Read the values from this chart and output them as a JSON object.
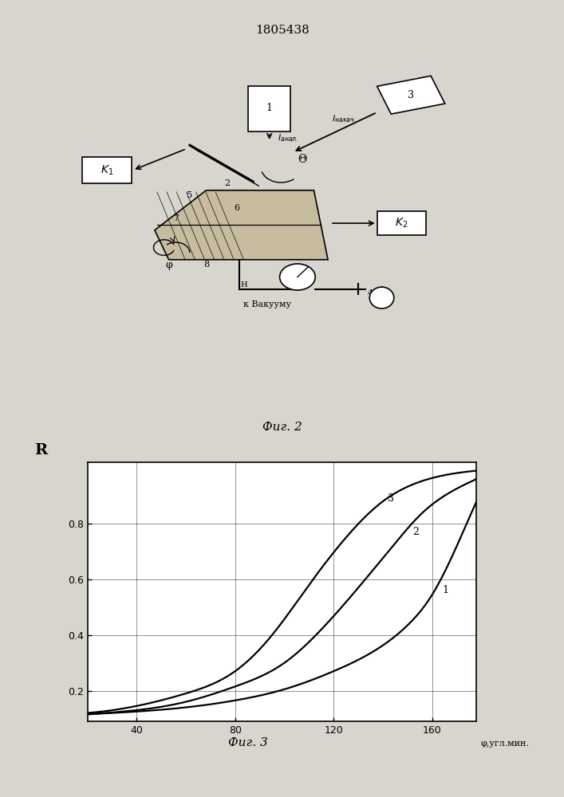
{
  "title": "1805438",
  "fig2_caption": "Фиг. 2",
  "fig3_caption": "Фиг. 3",
  "graph_ylabel": "R",
  "graph_xlabel": "φ,угл.мин.",
  "graph_xticks": [
    40,
    80,
    120,
    160
  ],
  "graph_yticks": [
    0.2,
    0.4,
    0.6,
    0.8
  ],
  "graph_xlim": [
    20,
    178
  ],
  "graph_ylim": [
    0.09,
    1.02
  ],
  "curve1_x": [
    20,
    40,
    60,
    80,
    100,
    120,
    135,
    150,
    160,
    170,
    178
  ],
  "curve1_y": [
    0.115,
    0.125,
    0.14,
    0.165,
    0.205,
    0.27,
    0.335,
    0.435,
    0.545,
    0.72,
    0.88
  ],
  "curve2_x": [
    20,
    40,
    60,
    80,
    100,
    115,
    130,
    145,
    155,
    165,
    178
  ],
  "curve2_y": [
    0.115,
    0.13,
    0.16,
    0.215,
    0.3,
    0.42,
    0.57,
    0.73,
    0.83,
    0.9,
    0.96
  ],
  "curve3_x": [
    20,
    40,
    60,
    80,
    95,
    110,
    125,
    140,
    152,
    163,
    178
  ],
  "curve3_y": [
    0.12,
    0.145,
    0.19,
    0.27,
    0.4,
    0.58,
    0.75,
    0.88,
    0.94,
    0.97,
    0.99
  ],
  "bg_color": "#d8d4ce",
  "diagram_bg": "#ffffff",
  "line_color": "#000000"
}
